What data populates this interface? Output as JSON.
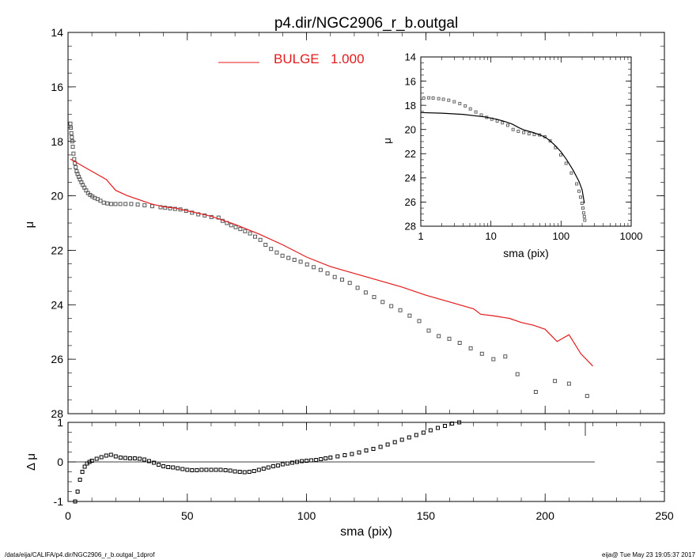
{
  "footer": {
    "path": "/data/eija/CALIFA/p4.dir/NGC2906_r_b.outgal_1dprof",
    "stamp": "eija@  Tue May 23 19:05:37 2017"
  },
  "chart_data": [
    {
      "id": "main",
      "type": "scatter",
      "title": "p4.dir/NGC2906_r_b.outgal",
      "xlabel": "sma (pix)",
      "ylabel": "μ",
      "xlim": [
        0,
        250
      ],
      "ylim": [
        28,
        14
      ],
      "x_ticks": [
        "0",
        "50",
        "100",
        "150",
        "200",
        "250"
      ],
      "y_ticks": [
        "14",
        "16",
        "18",
        "20",
        "22",
        "24",
        "26",
        "28"
      ],
      "legend": {
        "label": "BULGE",
        "value": "1.000",
        "color": "#e41a1c",
        "placement": "top"
      },
      "series": [
        {
          "kind": "markers",
          "color": "#555555",
          "x": [
            1.0,
            1.2,
            1.4,
            1.6,
            1.8,
            2.0,
            2.3,
            2.6,
            2.9,
            3.2,
            3.6,
            4.0,
            4.5,
            5.0,
            5.6,
            6.2,
            6.9,
            7.6,
            8.4,
            9.3,
            10.2,
            11.2,
            12.4,
            13.6,
            15.0,
            16.5,
            18.1,
            19.9,
            21.9,
            24.1,
            26.5,
            29.2,
            32.1,
            35.3,
            38.8,
            40.7,
            42.8,
            44.9,
            47.1,
            49.5,
            52.0,
            54.6,
            57.3,
            60.1,
            63.1,
            64.8,
            66.6,
            68.4,
            70.3,
            72.2,
            74.2,
            76.3,
            78.4,
            80.6,
            82.8,
            85.1,
            87.5,
            89.9,
            92.4,
            94.9,
            97.5,
            100.2,
            103.0,
            105.9,
            108.8,
            111.8,
            114.9,
            118.1,
            121.4,
            124.8,
            128.3,
            131.9,
            135.5,
            139.3,
            143.2,
            147.2,
            151.2,
            155.4,
            159.8,
            164.2,
            168.8,
            173.5,
            178.3,
            183.3,
            188.4,
            196.1,
            204.1,
            210.0,
            217.6
          ],
          "y": [
            17.35,
            17.5,
            17.7,
            17.85,
            18.0,
            18.2,
            18.45,
            18.65,
            18.8,
            18.95,
            19.1,
            19.2,
            19.3,
            19.4,
            19.5,
            19.6,
            19.7,
            19.8,
            19.9,
            19.97,
            20.02,
            20.08,
            20.12,
            20.18,
            20.25,
            20.28,
            20.3,
            20.3,
            20.3,
            20.3,
            20.3,
            20.32,
            20.35,
            20.38,
            20.42,
            20.44,
            20.46,
            20.48,
            20.5,
            20.55,
            20.62,
            20.68,
            20.72,
            20.78,
            20.8,
            20.92,
            21.0,
            21.08,
            21.15,
            21.22,
            21.3,
            21.38,
            21.5,
            21.62,
            21.8,
            21.95,
            22.08,
            22.2,
            22.28,
            22.35,
            22.42,
            22.52,
            22.62,
            22.72,
            22.85,
            22.98,
            23.08,
            23.2,
            23.38,
            23.55,
            23.72,
            23.9,
            24.05,
            24.2,
            24.4,
            24.6,
            24.95,
            25.15,
            25.25,
            25.4,
            25.6,
            25.8,
            26.0,
            25.9,
            26.55,
            27.2,
            26.8,
            26.9,
            27.35
          ]
        },
        {
          "kind": "line",
          "color": "#e41a1c",
          "x": [
            1,
            5,
            10,
            16,
            20,
            25,
            30,
            35,
            40,
            45,
            50,
            60,
            70,
            80,
            90,
            100,
            110,
            120,
            130,
            140,
            150,
            160,
            170,
            173,
            178,
            185,
            190,
            195,
            200,
            205,
            210,
            215,
            220
          ],
          "y": [
            18.65,
            18.85,
            19.1,
            19.4,
            19.8,
            20.0,
            20.15,
            20.3,
            20.4,
            20.45,
            20.55,
            20.75,
            21.05,
            21.4,
            21.8,
            22.25,
            22.6,
            22.85,
            23.1,
            23.35,
            23.65,
            23.9,
            24.15,
            24.35,
            24.4,
            24.5,
            24.65,
            24.75,
            24.9,
            25.35,
            25.1,
            25.8,
            26.25
          ]
        }
      ]
    },
    {
      "id": "residual",
      "type": "scatter",
      "xlabel": "sma (pix)",
      "ylabel": "Δ μ",
      "xlim": [
        0,
        250
      ],
      "ylim": [
        -1,
        1
      ],
      "x_ticks": [
        "0",
        "50",
        "100",
        "150",
        "200",
        "250"
      ],
      "y_ticks": [
        "-1",
        "0",
        "1"
      ],
      "series": [
        {
          "kind": "markers",
          "color": "#000000",
          "x": [
            3.0,
            4.0,
            5.0,
            6.0,
            7.0,
            8.0,
            9.0,
            10.0,
            12.0,
            14.0,
            16.0,
            18.0,
            20.0,
            22.0,
            24.0,
            26.0,
            28.0,
            30.0,
            32.0,
            34.0,
            36.0,
            38.0,
            40.0,
            42.0,
            44.0,
            46.0,
            48.0,
            50.0,
            52.0,
            54.0,
            56.0,
            58.0,
            60.0,
            62.0,
            64.0,
            66.0,
            68.0,
            70.0,
            72.0,
            74.0,
            76.0,
            78.0,
            80.0,
            82.0,
            84.0,
            86.0,
            88.0,
            90.0,
            92.0,
            94.0,
            96.0,
            98.0,
            100.0,
            102.0,
            104.0,
            106.0,
            108.0,
            110.0,
            113.0,
            116.0,
            119.0,
            122.0,
            125.0,
            128.0,
            131.0,
            134.0,
            137.0,
            140.0,
            143.0,
            146.0,
            149.0,
            152.0,
            155.0,
            158.0,
            161.0,
            164.0
          ],
          "y": [
            -1.0,
            -0.75,
            -0.45,
            -0.25,
            -0.12,
            -0.04,
            0.0,
            0.03,
            0.08,
            0.12,
            0.16,
            0.18,
            0.14,
            0.11,
            0.1,
            0.09,
            0.09,
            0.08,
            0.06,
            0.02,
            -0.02,
            -0.07,
            -0.11,
            -0.13,
            -0.14,
            -0.16,
            -0.18,
            -0.2,
            -0.21,
            -0.21,
            -0.2,
            -0.2,
            -0.2,
            -0.2,
            -0.2,
            -0.21,
            -0.22,
            -0.24,
            -0.25,
            -0.26,
            -0.25,
            -0.23,
            -0.2,
            -0.17,
            -0.14,
            -0.11,
            -0.09,
            -0.06,
            -0.04,
            -0.02,
            0.0,
            0.02,
            0.03,
            0.04,
            0.05,
            0.07,
            0.09,
            0.11,
            0.14,
            0.17,
            0.2,
            0.24,
            0.29,
            0.33,
            0.38,
            0.44,
            0.5,
            0.56,
            0.62,
            0.68,
            0.74,
            0.8,
            0.86,
            0.91,
            0.97,
            1.0
          ]
        }
      ]
    },
    {
      "id": "inset",
      "type": "scatter",
      "xlabel": "sma (pix)",
      "ylabel": "μ",
      "xscale": "log",
      "xlim": [
        1,
        1000
      ],
      "ylim": [
        28,
        14
      ],
      "x_ticks": [
        "1",
        "10",
        "100",
        "1000"
      ],
      "y_ticks": [
        "14",
        "16",
        "18",
        "20",
        "22",
        "24",
        "26",
        "28"
      ],
      "series": [
        {
          "kind": "markers",
          "color": "#666666",
          "x": [
            1.1,
            1.3,
            1.5,
            1.8,
            2.1,
            2.5,
            3.0,
            3.6,
            4.3,
            5.1,
            6.1,
            7.3,
            8.7,
            10.3,
            12.3,
            14.6,
            17.4,
            20.7,
            24.6,
            29.3,
            34.9,
            41.5,
            49.4,
            58.8,
            70.0,
            83.3,
            99.1,
            118.0,
            140.4,
            167.0,
            180.0,
            190.0,
            198.8,
            205.0,
            210.0,
            215.0,
            218.0
          ],
          "y": [
            17.4,
            17.38,
            17.4,
            17.45,
            17.5,
            17.58,
            17.7,
            17.85,
            18.05,
            18.3,
            18.55,
            18.8,
            19.0,
            19.15,
            19.3,
            19.45,
            19.65,
            20.0,
            20.15,
            20.25,
            20.35,
            20.42,
            20.45,
            20.6,
            20.95,
            21.5,
            22.1,
            22.8,
            23.6,
            24.5,
            25.1,
            25.6,
            26.1,
            26.5,
            26.9,
            27.2,
            27.5
          ]
        },
        {
          "kind": "line",
          "color": "#000000",
          "x": [
            1,
            2,
            4,
            8,
            12,
            16,
            20,
            25,
            30,
            40,
            50,
            60,
            70,
            80,
            100,
            120,
            150,
            180,
            200,
            215
          ],
          "y": [
            18.6,
            18.65,
            18.75,
            18.95,
            19.15,
            19.35,
            19.55,
            19.85,
            20.05,
            20.25,
            20.45,
            20.65,
            20.95,
            21.25,
            21.85,
            22.5,
            23.4,
            24.3,
            25.0,
            26.1
          ]
        }
      ]
    }
  ]
}
